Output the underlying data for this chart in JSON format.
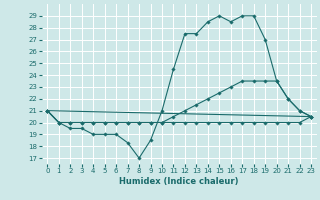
{
  "title": "",
  "xlabel": "Humidex (Indice chaleur)",
  "ylabel": "",
  "background_color": "#cee8e8",
  "grid_color": "#b8d8d8",
  "line_color": "#1a6b6b",
  "xlim": [
    -0.5,
    23.5
  ],
  "ylim": [
    16.5,
    30.0
  ],
  "yticks": [
    17,
    18,
    19,
    20,
    21,
    22,
    23,
    24,
    25,
    26,
    27,
    28,
    29
  ],
  "xticks": [
    0,
    1,
    2,
    3,
    4,
    5,
    6,
    7,
    8,
    9,
    10,
    11,
    12,
    13,
    14,
    15,
    16,
    17,
    18,
    19,
    20,
    21,
    22,
    23
  ],
  "series": [
    {
      "x": [
        0,
        1,
        2,
        3,
        4,
        5,
        6,
        7,
        8,
        9,
        10,
        11,
        12,
        13,
        14,
        15,
        16,
        17,
        18,
        19,
        20,
        21,
        22,
        23
      ],
      "y": [
        21,
        20,
        19.5,
        19.5,
        19,
        19,
        19,
        18.3,
        17,
        18.5,
        21,
        24.5,
        27.5,
        27.5,
        28.5,
        29,
        28.5,
        29,
        29,
        27,
        23.5,
        22,
        21,
        20.5
      ]
    },
    {
      "x": [
        0,
        1,
        2,
        3,
        4,
        5,
        6,
        7,
        8,
        9,
        10,
        11,
        12,
        13,
        14,
        15,
        16,
        17,
        18,
        19,
        20,
        21,
        22,
        23
      ],
      "y": [
        21,
        20,
        20,
        20,
        20,
        20,
        20,
        20,
        20,
        20,
        20,
        20,
        20,
        20,
        20,
        20,
        20,
        20,
        20,
        20,
        20,
        20,
        20,
        20.5
      ]
    },
    {
      "x": [
        0,
        1,
        2,
        3,
        4,
        5,
        6,
        7,
        8,
        9,
        10,
        11,
        12,
        13,
        14,
        15,
        16,
        17,
        18,
        19,
        20,
        21,
        22,
        23
      ],
      "y": [
        21,
        20,
        20,
        20,
        20,
        20,
        20,
        20,
        20,
        20,
        20,
        20.5,
        21,
        21.5,
        22,
        22.5,
        23,
        23.5,
        23.5,
        23.5,
        23.5,
        22,
        21,
        20.5
      ]
    },
    {
      "x": [
        0,
        23
      ],
      "y": [
        21,
        20.5
      ]
    }
  ]
}
